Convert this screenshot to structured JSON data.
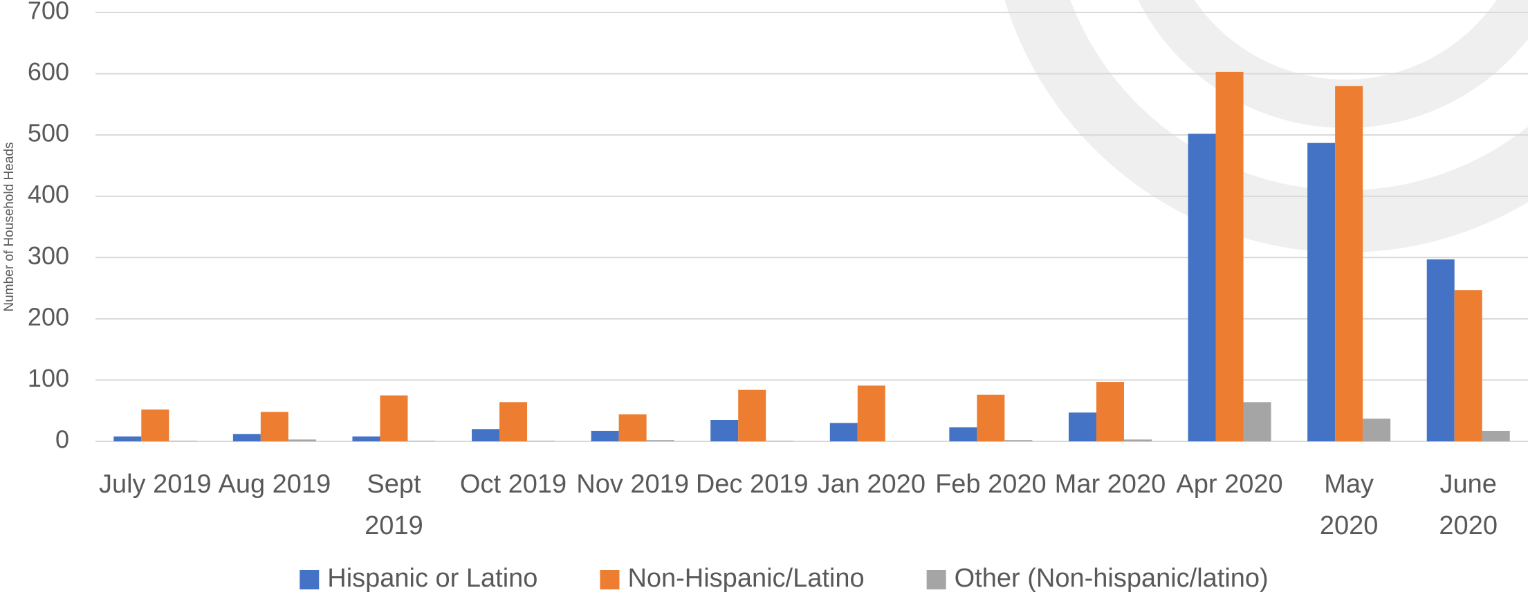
{
  "chart_data": {
    "type": "bar",
    "y_axis_label": "Number of Household Heads",
    "categories": [
      "July 2019",
      "Aug 2019",
      "Sept 2019",
      "Oct 2019",
      "Nov 2019",
      "Dec 2019",
      "Jan 2020",
      "Feb 2020",
      "Mar 2020",
      "Apr 2020",
      "May 2020",
      "June 2020"
    ],
    "series": [
      {
        "name": "Hispanic or Latino",
        "color": "#4472c4",
        "values": [
          8,
          12,
          8,
          20,
          17,
          35,
          30,
          23,
          47,
          502,
          487,
          297
        ]
      },
      {
        "name": "Non-Hispanic/Latino",
        "color": "#ed7d31",
        "values": [
          52,
          48,
          75,
          64,
          44,
          84,
          91,
          76,
          97,
          603,
          580,
          247
        ]
      },
      {
        "name": "Other (Non-hispanic/latino)",
        "color": "#a5a5a5",
        "values": [
          1,
          3,
          1,
          1,
          2,
          1,
          0,
          2,
          3,
          64,
          37,
          17
        ]
      }
    ],
    "ylim": [
      0,
      700
    ],
    "yticks": [
      0,
      100,
      200,
      300,
      400,
      500,
      600,
      700
    ],
    "grid": true,
    "legend": "bottom"
  }
}
